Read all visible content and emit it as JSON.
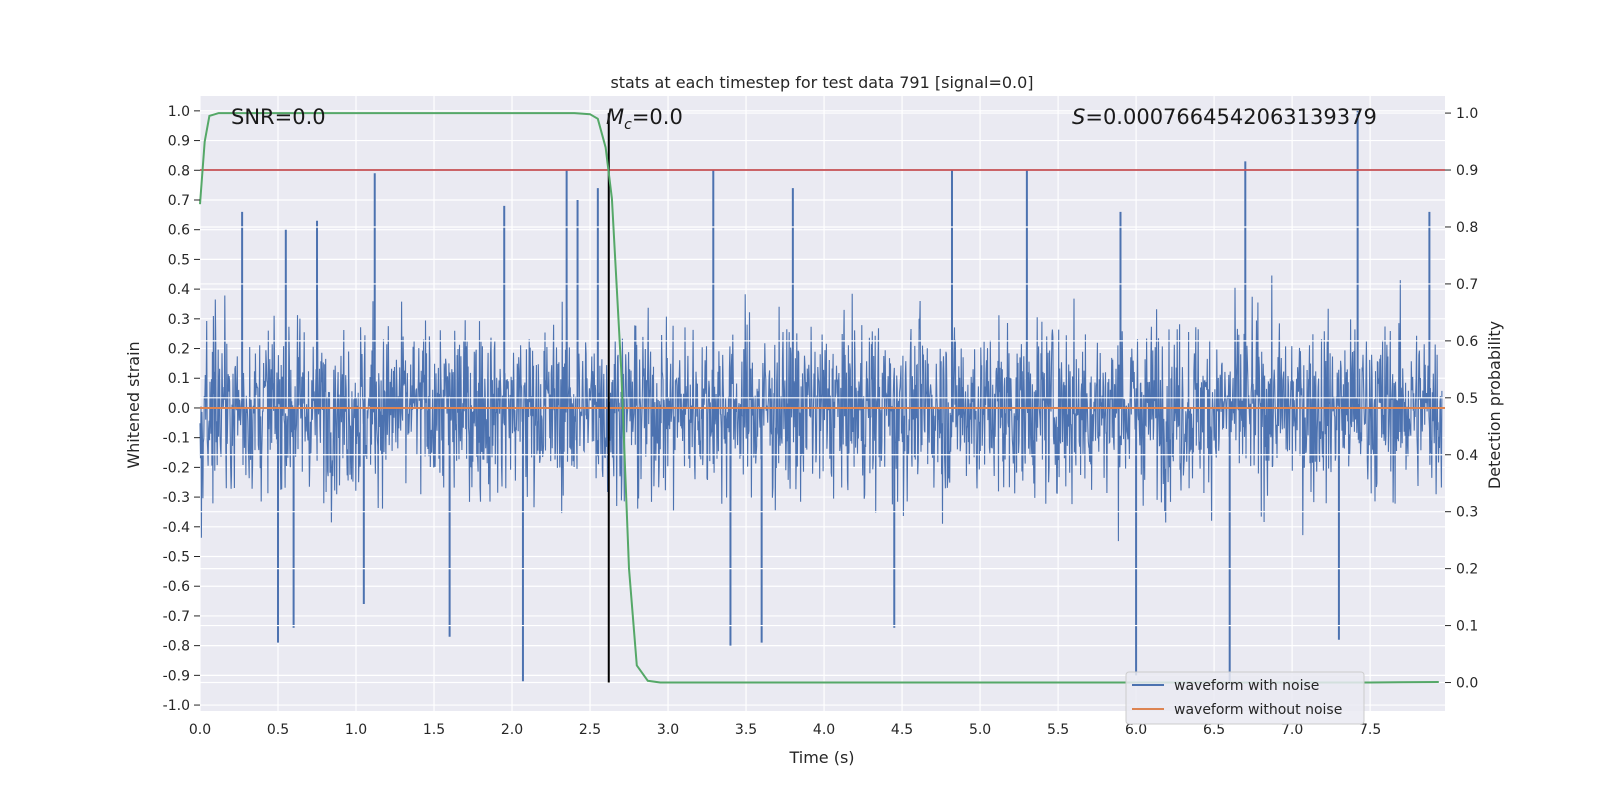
{
  "chart_data": {
    "type": "line",
    "title": "stats at each timestep for test data 791 [signal=0.0]",
    "xlabel": "Time (s)",
    "ylabel": "Whitened strain",
    "y2label": "Detection probability",
    "xlim": [
      0.0,
      7.98
    ],
    "ylim": [
      -1.02,
      1.05
    ],
    "y2lim": [
      -0.05,
      1.03
    ],
    "xticks": [
      "0.0",
      "0.5",
      "1.0",
      "1.5",
      "2.0",
      "2.5",
      "3.0",
      "3.5",
      "4.0",
      "4.5",
      "5.0",
      "5.5",
      "6.0",
      "6.5",
      "7.0",
      "7.5"
    ],
    "yticks": [
      "1.0",
      "0.9",
      "0.8",
      "0.7",
      "0.6",
      "0.5",
      "0.4",
      "0.3",
      "0.2",
      "0.1",
      "0.0",
      "-0.1",
      "-0.2",
      "-0.3",
      "-0.4",
      "-0.5",
      "-0.6",
      "-0.7",
      "-0.8",
      "-0.9",
      "-1.0"
    ],
    "y2ticks": [
      "1.0",
      "0.9",
      "0.8",
      "0.7",
      "0.6",
      "0.5",
      "0.4",
      "0.3",
      "0.2",
      "0.1",
      "0.0"
    ],
    "annotations": {
      "snr": "SNR=0.0",
      "mc_symbol": "M",
      "mc_sub": "c",
      "mc_value": "=0.0",
      "s_symbol": "S",
      "s_value": "=0.0007664542063139379"
    },
    "marker_time": 2.62,
    "threshold": 0.9,
    "series": [
      {
        "name": "waveform with noise",
        "axis": "left",
        "color": "#4c72b0",
        "description": "dense whitened noise, roughly between -0.92 and 1.0"
      },
      {
        "name": "waveform without noise",
        "axis": "left",
        "color": "#dd8452",
        "x": [
          0.0,
          7.98
        ],
        "y": [
          0.0,
          0.0
        ]
      },
      {
        "name": "detection probability",
        "axis": "right",
        "color": "#55a868",
        "x": [
          0.0,
          0.03,
          0.06,
          0.12,
          0.5,
          1.0,
          1.5,
          2.0,
          2.4,
          2.5,
          2.55,
          2.6,
          2.64,
          2.7,
          2.75,
          2.8,
          2.87,
          2.95,
          3.1,
          4.0,
          5.0,
          6.0,
          7.0,
          7.5,
          7.94
        ],
        "y": [
          0.84,
          0.95,
          0.995,
          1.0,
          1.0,
          1.0,
          1.0,
          1.0,
          1.0,
          0.998,
          0.99,
          0.94,
          0.85,
          0.55,
          0.2,
          0.03,
          0.003,
          0.0,
          0.0,
          0.0,
          0.0,
          0.0,
          0.0,
          0.0,
          0.001
        ]
      },
      {
        "name": "threshold",
        "axis": "right",
        "color": "#c44e52",
        "x": [
          0.0,
          7.98
        ],
        "y": [
          0.9,
          0.9
        ]
      }
    ],
    "peaks": {
      "upper": [
        {
          "x": 0.27,
          "y": 0.66
        },
        {
          "x": 0.55,
          "y": 0.6
        },
        {
          "x": 0.75,
          "y": 0.63
        },
        {
          "x": 1.12,
          "y": 0.79
        },
        {
          "x": 1.95,
          "y": 0.68
        },
        {
          "x": 2.35,
          "y": 0.8
        },
        {
          "x": 2.42,
          "y": 0.7
        },
        {
          "x": 2.55,
          "y": 0.74
        },
        {
          "x": 3.29,
          "y": 0.8
        },
        {
          "x": 3.8,
          "y": 0.74
        },
        {
          "x": 4.82,
          "y": 0.8
        },
        {
          "x": 5.3,
          "y": 0.8
        },
        {
          "x": 6.7,
          "y": 0.83
        },
        {
          "x": 7.42,
          "y": 1.0
        },
        {
          "x": 5.9,
          "y": 0.66
        },
        {
          "x": 7.88,
          "y": 0.66
        }
      ],
      "lower": [
        {
          "x": 0.5,
          "y": -0.79
        },
        {
          "x": 0.6,
          "y": -0.74
        },
        {
          "x": 1.6,
          "y": -0.77
        },
        {
          "x": 2.07,
          "y": -0.92
        },
        {
          "x": 3.4,
          "y": -0.8
        },
        {
          "x": 3.6,
          "y": -0.79
        },
        {
          "x": 6.0,
          "y": -0.9
        },
        {
          "x": 6.6,
          "y": -0.92
        },
        {
          "x": 7.3,
          "y": -0.78
        },
        {
          "x": 4.45,
          "y": -0.74
        },
        {
          "x": 1.05,
          "y": -0.66
        }
      ]
    },
    "legend": {
      "placement": "lower-right",
      "entries": [
        {
          "label": "waveform with noise",
          "color": "#4c72b0"
        },
        {
          "label": "waveform without noise",
          "color": "#dd8452"
        }
      ]
    },
    "grid": true
  }
}
